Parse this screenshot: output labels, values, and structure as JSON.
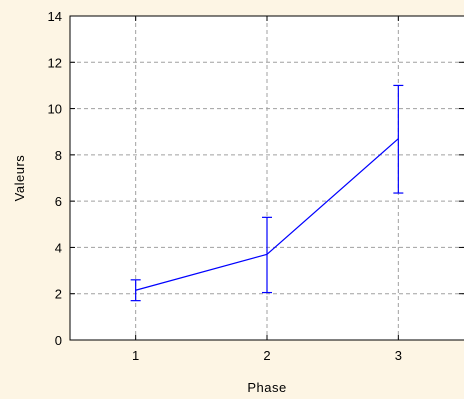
{
  "chart_data": {
    "type": "line",
    "title": "",
    "xlabel": "Phase",
    "ylabel": "Valeurs",
    "x": [
      1,
      2,
      3
    ],
    "x_tick_labels": [
      "1",
      "2",
      "3"
    ],
    "xlim": [
      0.5,
      3.5
    ],
    "ylim": [
      0,
      14
    ],
    "y_ticks": [
      0,
      2,
      4,
      6,
      8,
      10,
      12,
      14
    ],
    "y_tick_labels": [
      "0",
      "2",
      "4",
      "6",
      "8",
      "10",
      "12",
      "14"
    ],
    "grid": true,
    "series": [
      {
        "values": [
          2.15,
          3.7,
          8.7
        ],
        "error_low": [
          1.7,
          2.05,
          6.35
        ],
        "error_high": [
          2.6,
          5.3,
          11.0
        ],
        "color": "#0000ff"
      }
    ]
  }
}
